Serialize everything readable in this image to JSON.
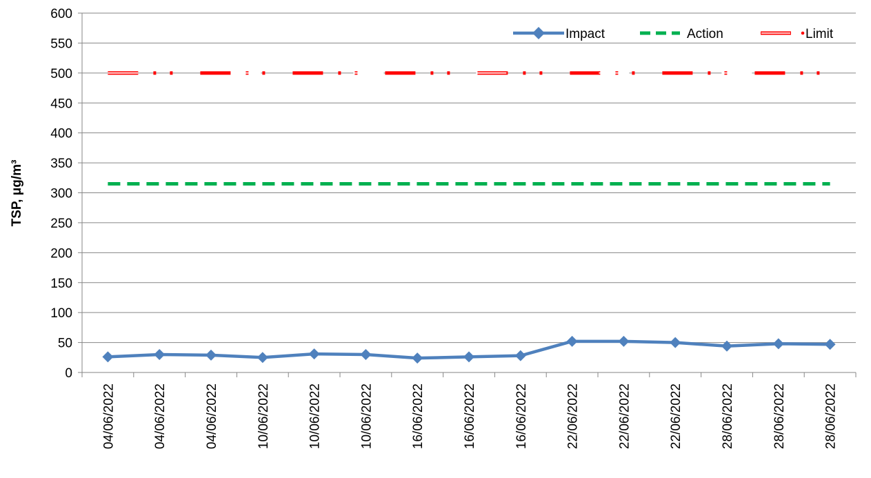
{
  "chart_data": {
    "type": "line",
    "categories": [
      "04/06/2022",
      "04/06/2022",
      "04/06/2022",
      "10/06/2022",
      "10/06/2022",
      "10/06/2022",
      "16/06/2022",
      "16/06/2022",
      "16/06/2022",
      "22/06/2022",
      "22/06/2022",
      "22/06/2022",
      "28/06/2022",
      "28/06/2022",
      "28/06/2022"
    ],
    "series": [
      {
        "name": "Impact",
        "values": [
          26,
          30,
          29,
          25,
          31,
          30,
          24,
          26,
          28,
          52,
          52,
          50,
          44,
          48,
          47
        ],
        "color": "#4F81BD",
        "style": "solid-diamond"
      },
      {
        "name": "Action",
        "values": [
          315,
          315,
          315,
          315,
          315,
          315,
          315,
          315,
          315,
          315,
          315,
          315,
          315,
          315,
          315
        ],
        "color": "#00B050",
        "style": "dashed"
      },
      {
        "name": "Limit",
        "values": [
          500,
          500,
          500,
          500,
          500,
          500,
          500,
          500,
          500,
          500,
          500,
          500,
          500,
          500,
          500
        ],
        "color": "#FF0000",
        "style": "dash-dot-dot-outlined"
      }
    ],
    "title": "",
    "xlabel": "",
    "ylabel": "TSP, μg/m³",
    "ylim": [
      0,
      600
    ],
    "yticks": [
      0,
      50,
      100,
      150,
      200,
      250,
      300,
      350,
      400,
      450,
      500,
      550,
      600
    ],
    "grid": true,
    "legend_position": "top-right"
  }
}
